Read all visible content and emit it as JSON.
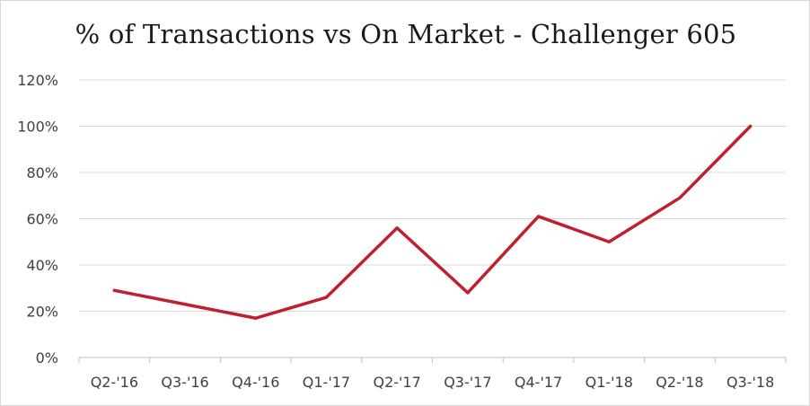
{
  "chart_data": {
    "type": "line",
    "title": "% of Transactions vs On Market - Challenger 605",
    "xlabel": "",
    "ylabel": "",
    "categories": [
      "Q2-'16",
      "Q3-'16",
      "Q4-'16",
      "Q1-'17",
      "Q2-'17",
      "Q3-'17",
      "Q4-'17",
      "Q1-'18",
      "Q2-'18",
      "Q3-'18"
    ],
    "series": [
      {
        "values": [
          29,
          23,
          17,
          26,
          56,
          28,
          61,
          50,
          69,
          100
        ],
        "color": "#c0202e"
      }
    ],
    "ylim": [
      0,
      120
    ],
    "yticks": [
      0,
      20,
      40,
      60,
      80,
      100,
      120
    ],
    "ytick_labels": [
      "0%",
      "20%",
      "40%",
      "60%",
      "80%",
      "100%",
      "120%"
    ],
    "grid": true,
    "legend": "none"
  }
}
